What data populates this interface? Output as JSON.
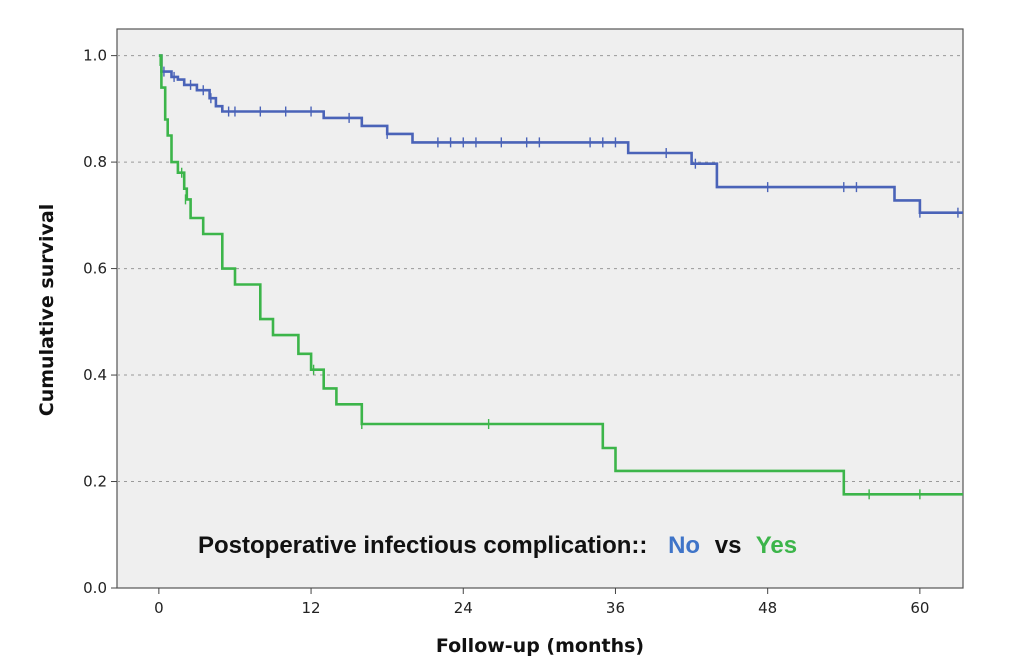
{
  "chart_data": {
    "type": "line",
    "step": true,
    "xlabel": "Follow-up (months)",
    "ylabel": "Cumulative survival",
    "xlim": [
      -3.3,
      63.4
    ],
    "ylim": [
      0,
      1.05
    ],
    "xticks": [
      0,
      12,
      24,
      36,
      48,
      60
    ],
    "yticks": [
      0.0,
      0.2,
      0.4,
      0.6,
      0.8,
      1.0
    ],
    "grid": {
      "y": true,
      "x": false,
      "style": "dashed"
    },
    "background": "#efefef",
    "annotation": {
      "prefix": "Postoperative infectious complication::",
      "label_a": "No",
      "connector": "vs",
      "label_b": "Yes"
    },
    "series": [
      {
        "name": "No",
        "color": "#4a63b8",
        "steps": [
          [
            0,
            1.0
          ],
          [
            0.2,
            0.97
          ],
          [
            1,
            0.96
          ],
          [
            1.5,
            0.955
          ],
          [
            2,
            0.945
          ],
          [
            3,
            0.935
          ],
          [
            4,
            0.92
          ],
          [
            4.5,
            0.905
          ],
          [
            5,
            0.895
          ],
          [
            13,
            0.883
          ],
          [
            16,
            0.868
          ],
          [
            18,
            0.853
          ],
          [
            20,
            0.837
          ],
          [
            37,
            0.817
          ],
          [
            42,
            0.797
          ],
          [
            44,
            0.753
          ],
          [
            58,
            0.728
          ],
          [
            60,
            0.705
          ],
          [
            63.4,
            0.705
          ]
        ],
        "censored": [
          [
            0.4,
            0.97
          ],
          [
            1.2,
            0.96
          ],
          [
            2.5,
            0.945
          ],
          [
            3.5,
            0.935
          ],
          [
            4.1,
            0.92
          ],
          [
            5.5,
            0.895
          ],
          [
            6,
            0.895
          ],
          [
            8,
            0.895
          ],
          [
            10,
            0.895
          ],
          [
            12,
            0.895
          ],
          [
            15,
            0.883
          ],
          [
            18,
            0.853
          ],
          [
            22,
            0.837
          ],
          [
            23,
            0.837
          ],
          [
            24,
            0.837
          ],
          [
            25,
            0.837
          ],
          [
            27,
            0.837
          ],
          [
            29,
            0.837
          ],
          [
            30,
            0.837
          ],
          [
            34,
            0.837
          ],
          [
            35,
            0.837
          ],
          [
            36,
            0.837
          ],
          [
            40,
            0.817
          ],
          [
            42.3,
            0.797
          ],
          [
            48,
            0.753
          ],
          [
            54,
            0.753
          ],
          [
            55,
            0.753
          ],
          [
            60,
            0.705
          ],
          [
            63,
            0.705
          ]
        ]
      },
      {
        "name": "Yes",
        "color": "#3cb54a",
        "steps": [
          [
            0,
            1.0
          ],
          [
            0.2,
            0.94
          ],
          [
            0.5,
            0.88
          ],
          [
            0.7,
            0.85
          ],
          [
            1,
            0.8
          ],
          [
            1.5,
            0.78
          ],
          [
            2,
            0.75
          ],
          [
            2.2,
            0.73
          ],
          [
            2.5,
            0.695
          ],
          [
            3.5,
            0.665
          ],
          [
            5,
            0.6
          ],
          [
            6,
            0.57
          ],
          [
            8,
            0.505
          ],
          [
            9,
            0.475
          ],
          [
            11,
            0.44
          ],
          [
            12,
            0.41
          ],
          [
            13,
            0.375
          ],
          [
            14,
            0.345
          ],
          [
            16,
            0.308
          ],
          [
            35,
            0.263
          ],
          [
            36,
            0.22
          ],
          [
            54,
            0.176
          ],
          [
            63.4,
            0.176
          ]
        ],
        "censored": [
          [
            0.1,
            0.99
          ],
          [
            1.8,
            0.78
          ],
          [
            2.1,
            0.73
          ],
          [
            12.2,
            0.41
          ],
          [
            16,
            0.308
          ],
          [
            26,
            0.308
          ],
          [
            56,
            0.176
          ],
          [
            60,
            0.176
          ]
        ]
      }
    ]
  }
}
